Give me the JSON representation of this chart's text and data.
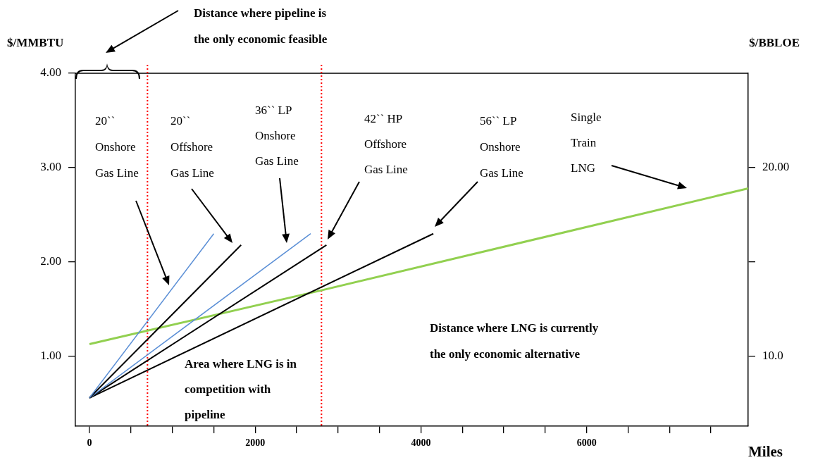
{
  "chart_data": {
    "type": "line",
    "xlabel": "Miles",
    "ylabel": "$/MMBTU",
    "y2label": "$/BBLOE",
    "xlim": [
      -170,
      7950
    ],
    "xticks": [
      0,
      {
        "value": 500,
        "label": null
      },
      {
        "value": 1000,
        "label": null
      },
      {
        "value": 1500,
        "label": null
      },
      2000,
      {
        "value": 2500,
        "label": null
      },
      {
        "value": 3000,
        "label": null
      },
      {
        "value": 3500,
        "label": null
      },
      4000,
      {
        "value": 4500,
        "label": null
      },
      {
        "value": 5000,
        "label": null
      },
      {
        "value": 5500,
        "label": null
      },
      6000,
      {
        "value": 6500,
        "label": null
      },
      {
        "value": 7000,
        "label": null
      },
      {
        "value": 7500,
        "label": null
      }
    ],
    "ylim": [
      0.26,
      4.0
    ],
    "yticks": [
      {
        "value": 1,
        "label": "1.00"
      },
      {
        "value": 2,
        "label": "2.00"
      },
      {
        "value": 3,
        "label": "3.00"
      },
      {
        "value": 4,
        "label": "4.00"
      }
    ],
    "y2lim": [
      6.3,
      25
    ],
    "y2ticks": [
      {
        "value": 10,
        "label": "10.0"
      },
      {
        "value": 15,
        "label": null
      },
      {
        "value": 20,
        "label": "20.00"
      }
    ],
    "grid": false,
    "legend": false,
    "marker": "none",
    "line_style": "solid",
    "series": [
      {
        "color": "#5b8fd6",
        "x": [
          0,
          1500
        ],
        "values": [
          0.56,
          2.3
        ]
      },
      {
        "color": "#000000",
        "x": [
          0,
          1830
        ],
        "values": [
          0.56,
          2.18
        ]
      },
      {
        "color": "#5b8fd6",
        "x": [
          0,
          2670
        ],
        "values": [
          0.56,
          2.3
        ]
      },
      {
        "color": "#000000",
        "x": [
          0,
          2860
        ],
        "values": [
          0.56,
          2.18
        ]
      },
      {
        "color": "#000000",
        "x": [
          0,
          4150
        ],
        "values": [
          0.56,
          2.3
        ]
      },
      {
        "color": "#92d050",
        "x": [
          0,
          2800,
          7950
        ],
        "values": [
          1.13,
          1.7,
          2.78
        ]
      }
    ],
    "ref_lines": [
      {
        "axis": "x",
        "value": 700,
        "color": "#ff0000",
        "line_style": "dotted"
      },
      {
        "axis": "x",
        "value": 2800,
        "color": "#ff0000",
        "line_style": "dotted"
      }
    ],
    "annotations": [
      "Distance where pipeline is the only economic feasible",
      "20`` Onshore Gas Line",
      "20`` Offshore Gas Line",
      "36`` LP Onshore Gas Line",
      "42`` HP Offshore Gas Line",
      "56`` LP Onshore Gas Line",
      "Single Train LNG",
      "Distance where LNG is currently the only economic alternative",
      "Area where LNG is in competition with pipeline"
    ]
  }
}
